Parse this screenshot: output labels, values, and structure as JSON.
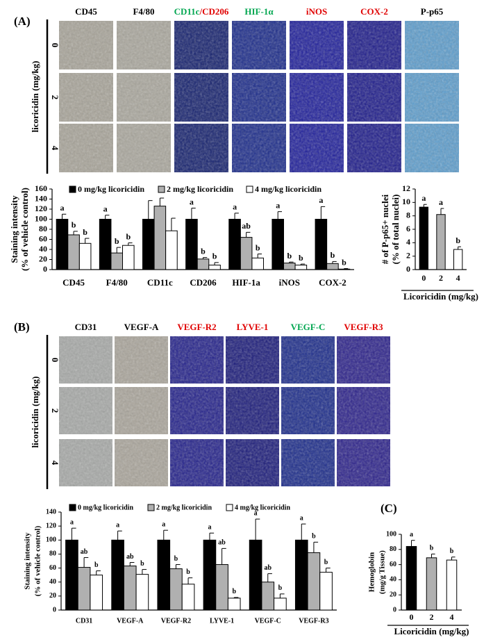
{
  "panel_a": {
    "label": "(A)",
    "row_axis_label": "licoricidin (mg/kg)",
    "rows": [
      "0",
      "2",
      "4"
    ],
    "columns": [
      {
        "label": [
          {
            "text": "CD45",
            "color": "#000000"
          }
        ],
        "tile_color": "#a7a398"
      },
      {
        "label": [
          {
            "text": "F4/80",
            "color": "#000000"
          }
        ],
        "tile_color": "#a9a69c"
      },
      {
        "label": [
          {
            "text": "CD11c",
            "color": "#00a650"
          },
          {
            "text": "/CD206",
            "color": "#e00000"
          }
        ],
        "tile_color": "#14206e"
      },
      {
        "label": [
          {
            "text": "HIF-1α",
            "color": "#00a650"
          }
        ],
        "tile_color": "#1a2a8a"
      },
      {
        "label": [
          {
            "text": "iNOS",
            "color": "#e00000"
          }
        ],
        "tile_color": "#1e1e9a"
      },
      {
        "label": [
          {
            "text": "COX-2",
            "color": "#e00000"
          }
        ],
        "tile_color": "#1c1a8a"
      },
      {
        "label": [
          {
            "text": "P-p65",
            "color": "#000000"
          }
        ],
        "tile_color": "#5b9ccc"
      }
    ]
  },
  "panel_b": {
    "label": "(B)",
    "row_axis_label": "licoricidin (mg/kg)",
    "rows": [
      "0",
      "2",
      "4"
    ],
    "columns": [
      {
        "label": [
          {
            "text": "CD31",
            "color": "#000000"
          }
        ],
        "tile_color": "#a6a8a6"
      },
      {
        "label": [
          {
            "text": "VEGF-A",
            "color": "#000000"
          }
        ],
        "tile_color": "#a9a49a"
      },
      {
        "label": [
          {
            "text": "VEGF-R2",
            "color": "#e00000"
          }
        ],
        "tile_color": "#22208a"
      },
      {
        "label": [
          {
            "text": "LYVE-1",
            "color": "#e00000"
          }
        ],
        "tile_color": "#1a1a7a"
      },
      {
        "label": [
          {
            "text": "VEGF-C",
            "color": "#00a650"
          }
        ],
        "tile_color": "#1a2a8a"
      },
      {
        "label": [
          {
            "text": "VEGF-R3",
            "color": "#e00000"
          }
        ],
        "tile_color": "#2a208a"
      }
    ]
  },
  "panel_c_label": "(C)",
  "chart_data": [
    {
      "type": "bar",
      "ylabel": [
        "Staining intensity",
        "(% of vehicle control)"
      ],
      "categories": [
        "CD45",
        "F4/80",
        "CD11c",
        "CD206",
        "HIF-1a",
        "iNOS",
        "COX-2"
      ],
      "series": [
        {
          "name": "0 mg/kg licoricidin",
          "color": "#000000",
          "values": [
            100,
            100,
            100,
            100,
            100,
            100,
            100
          ],
          "errors": [
            10,
            8,
            37,
            22,
            12,
            15,
            25
          ],
          "letters": [
            "a",
            "a",
            null,
            "a",
            "a",
            "a",
            "a"
          ]
        },
        {
          "name": "2 mg/kg licoricidin",
          "color": "#b0b0b0",
          "values": [
            69,
            33,
            126,
            21,
            64,
            13,
            12
          ],
          "errors": [
            7,
            11,
            16,
            3,
            10,
            2,
            4
          ],
          "letters": [
            "b",
            "b",
            null,
            "b",
            "ab",
            "b",
            "b"
          ]
        },
        {
          "name": "4 mg/kg licoricidin",
          "color": "#ffffff",
          "values": [
            52,
            48,
            77,
            9,
            23,
            9,
            1
          ],
          "errors": [
            10,
            5,
            25,
            5,
            8,
            2,
            1
          ],
          "letters": [
            "b",
            "b",
            null,
            "b",
            "b",
            "b",
            "b"
          ]
        }
      ],
      "ylim": [
        0,
        160
      ],
      "yticks": [
        0,
        20,
        40,
        60,
        80,
        100,
        120,
        140,
        160
      ]
    },
    {
      "type": "bar",
      "ylabel": [
        "# of P-p65+ nuclei",
        "(% of total nuclei)"
      ],
      "xlabel": "Licoricidin (mg/kg)",
      "categories": [
        "0",
        "2",
        "4"
      ],
      "values": [
        9.3,
        8.2,
        3.0
      ],
      "errors": [
        0.4,
        0.9,
        0.4
      ],
      "letters": [
        "a",
        "a",
        "b"
      ],
      "colors": [
        "#000000",
        "#b0b0b0",
        "#ffffff"
      ],
      "ylim": [
        0,
        12
      ],
      "yticks": [
        0,
        2,
        4,
        6,
        8,
        10,
        12
      ]
    },
    {
      "type": "bar",
      "ylabel": [
        "Staining intensity",
        "(% of vehicle control)"
      ],
      "categories": [
        "CD31",
        "VEGF-A",
        "VEGF-R2",
        "LYVE-1",
        "VEGF-C",
        "VEGF-R3"
      ],
      "series": [
        {
          "name": "0 mg/kg licoricidin",
          "color": "#000000",
          "values": [
            100,
            100,
            100,
            100,
            100,
            100
          ],
          "errors": [
            17,
            13,
            14,
            10,
            30,
            23
          ],
          "letters": [
            "a",
            "a",
            "a",
            "a",
            "a",
            "a"
          ]
        },
        {
          "name": "2 mg/kg licoricidin",
          "color": "#b0b0b0",
          "values": [
            61,
            63,
            59,
            65,
            40,
            82
          ],
          "errors": [
            14,
            5,
            6,
            23,
            12,
            15
          ],
          "letters": [
            "ab",
            "ab",
            "b",
            "ab",
            "ab",
            "b"
          ]
        },
        {
          "name": "4 mg/kg licoricidin",
          "color": "#ffffff",
          "values": [
            50,
            51,
            37,
            17,
            17,
            54
          ],
          "errors": [
            6,
            7,
            9,
            1,
            6,
            6
          ],
          "letters": [
            "b",
            "b",
            "b",
            "b",
            "b",
            "b"
          ]
        }
      ],
      "ylim": [
        0,
        140
      ],
      "yticks": [
        0,
        20,
        40,
        60,
        80,
        100,
        120,
        140
      ]
    },
    {
      "type": "bar",
      "ylabel": [
        "Hemoglobin",
        "(mg/g Tissue)"
      ],
      "xlabel": "Licoricidin (mg/kg)",
      "categories": [
        "0",
        "2",
        "4"
      ],
      "values": [
        84,
        69,
        66
      ],
      "errors": [
        8,
        5,
        4
      ],
      "letters": [
        "a",
        "b",
        "b"
      ],
      "colors": [
        "#000000",
        "#b0b0b0",
        "#ffffff"
      ],
      "ylim": [
        0,
        100
      ],
      "yticks": [
        0,
        20,
        40,
        60,
        80,
        100
      ]
    }
  ]
}
